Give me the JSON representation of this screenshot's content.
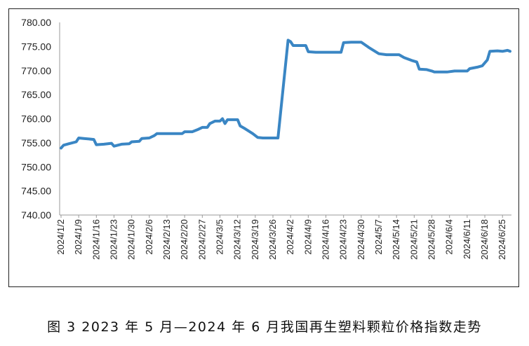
{
  "caption": "图 3  2023 年 5 月—2024 年 6 月我国再生塑料颗粒价格指数走势",
  "colors": {
    "line": "#3a86c4",
    "axis": "#9a9a9a",
    "frame": "#222222"
  },
  "chart_data": {
    "type": "line",
    "title": "",
    "xlabel": "",
    "ylabel": "",
    "ylim": [
      740,
      780
    ],
    "y_ticks": [
      "780.00",
      "775.00",
      "770.00",
      "765.00",
      "760.00",
      "755.00",
      "750.00",
      "745.00",
      "740.00"
    ],
    "x_tick_labels": [
      "2024/1/2",
      "2024/1/9",
      "2024/1/16",
      "2024/1/23",
      "2024/1/30",
      "2024/2/6",
      "2024/2/13",
      "2024/2/20",
      "2024/2/27",
      "2024/3/5",
      "2024/3/12",
      "2024/3/19",
      "2024/3/26",
      "2024/4/2",
      "2024/4/9",
      "2024/4/16",
      "2024/4/23",
      "2024/4/30",
      "2024/5/7",
      "2024/5/14",
      "2024/5/21",
      "2024/5/28",
      "2024/6/4",
      "2024/6/11",
      "2024/6/18",
      "2024/6/25"
    ],
    "grid": false,
    "legend": "none",
    "series": [
      {
        "points": [
          [
            "2024/1/2",
            753.9
          ],
          [
            "2024/1/3",
            754.5
          ],
          [
            "2024/1/5",
            754.8
          ],
          [
            "2024/1/8",
            755.2
          ],
          [
            "2024/1/9",
            756.0
          ],
          [
            "2024/1/11",
            755.9
          ],
          [
            "2024/1/15",
            755.7
          ],
          [
            "2024/1/16",
            754.6
          ],
          [
            "2024/1/19",
            754.7
          ],
          [
            "2024/1/22",
            754.9
          ],
          [
            "2024/1/23",
            754.3
          ],
          [
            "2024/1/26",
            754.7
          ],
          [
            "2024/1/29",
            754.8
          ],
          [
            "2024/1/30",
            755.2
          ],
          [
            "2024/2/2",
            755.3
          ],
          [
            "2024/2/3",
            755.9
          ],
          [
            "2024/2/6",
            756.0
          ],
          [
            "2024/2/8",
            756.5
          ],
          [
            "2024/2/9",
            756.9
          ],
          [
            "2024/2/13",
            756.9
          ],
          [
            "2024/2/19",
            756.9
          ],
          [
            "2024/2/20",
            757.3
          ],
          [
            "2024/2/23",
            757.3
          ],
          [
            "2024/2/25",
            757.7
          ],
          [
            "2024/2/27",
            758.2
          ],
          [
            "2024/2/29",
            758.2
          ],
          [
            "2024/3/1",
            759.0
          ],
          [
            "2024/3/3",
            759.5
          ],
          [
            "2024/3/5",
            759.5
          ],
          [
            "2024/3/6",
            760.0
          ],
          [
            "2024/3/7",
            759.0
          ],
          [
            "2024/3/8",
            759.8
          ],
          [
            "2024/3/12",
            759.8
          ],
          [
            "2024/3/13",
            758.5
          ],
          [
            "2024/3/15",
            757.9
          ],
          [
            "2024/3/18",
            756.9
          ],
          [
            "2024/3/20",
            756.1
          ],
          [
            "2024/3/22",
            756.0
          ],
          [
            "2024/3/28",
            756.0
          ],
          [
            "2024/4/1",
            776.3
          ],
          [
            "2024/4/2",
            776.0
          ],
          [
            "2024/4/3",
            775.2
          ],
          [
            "2024/4/8",
            775.2
          ],
          [
            "2024/4/9",
            773.9
          ],
          [
            "2024/4/12",
            773.8
          ],
          [
            "2024/4/22",
            773.8
          ],
          [
            "2024/4/23",
            775.8
          ],
          [
            "2024/4/26",
            775.9
          ],
          [
            "2024/4/30",
            775.9
          ],
          [
            "2024/5/3",
            774.8
          ],
          [
            "2024/5/7",
            773.5
          ],
          [
            "2024/5/10",
            773.3
          ],
          [
            "2024/5/15",
            773.3
          ],
          [
            "2024/5/17",
            772.7
          ],
          [
            "2024/5/20",
            772.1
          ],
          [
            "2024/5/22",
            771.8
          ],
          [
            "2024/5/23",
            770.3
          ],
          [
            "2024/5/26",
            770.2
          ],
          [
            "2024/5/28",
            769.9
          ],
          [
            "2024/5/29",
            769.7
          ],
          [
            "2024/6/3",
            769.7
          ],
          [
            "2024/6/6",
            769.9
          ],
          [
            "2024/6/11",
            769.9
          ],
          [
            "2024/6/12",
            770.4
          ],
          [
            "2024/6/15",
            770.7
          ],
          [
            "2024/6/17",
            771.0
          ],
          [
            "2024/6/19",
            772.2
          ],
          [
            "2024/6/20",
            774.0
          ],
          [
            "2024/6/23",
            774.1
          ],
          [
            "2024/6/25",
            774.0
          ],
          [
            "2024/6/27",
            774.2
          ],
          [
            "2024/6/28",
            774.0
          ]
        ]
      }
    ]
  }
}
